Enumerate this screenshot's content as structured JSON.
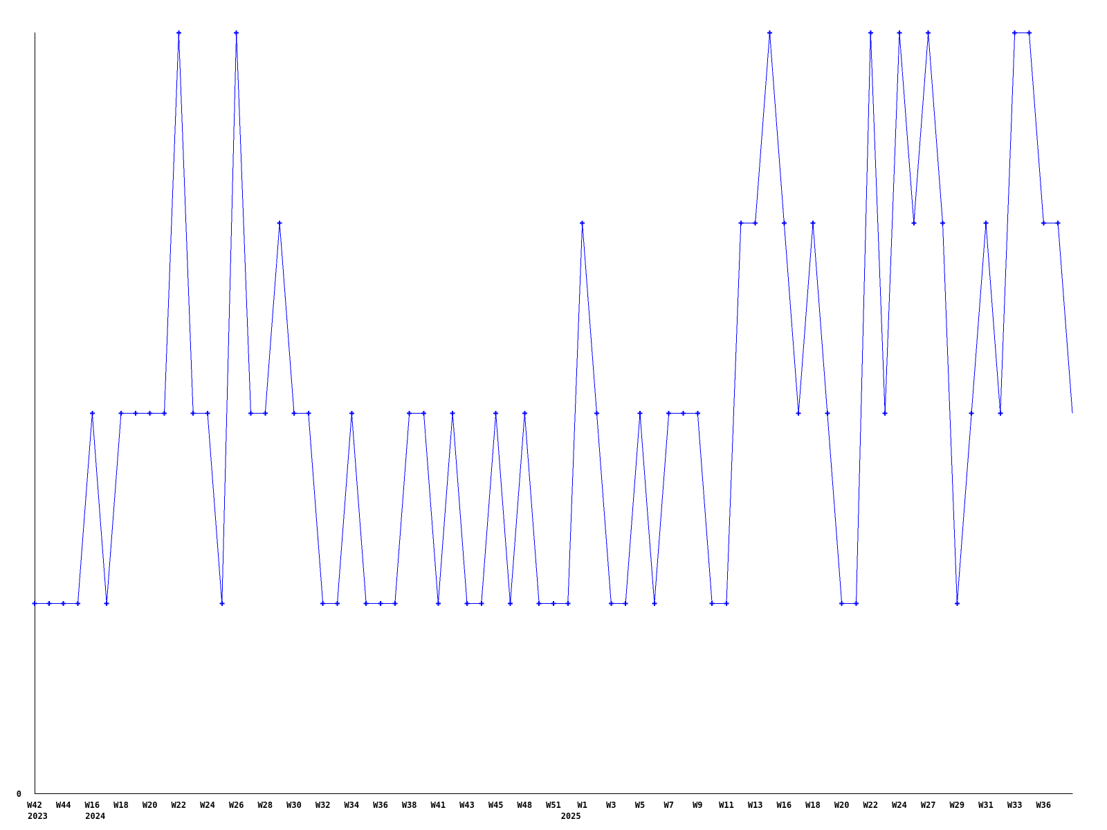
{
  "chart_data": {
    "type": "line",
    "title": "",
    "xlabel": "",
    "ylabel": "",
    "grid": false,
    "legend": null,
    "ylim": [
      0,
      4
    ],
    "y_axis": {
      "zero_label": "0"
    },
    "line_color": "#0000ff",
    "marker": "plus",
    "axis_color": "#000000",
    "background_color": "#ffffff",
    "x_tick_labels": [
      {
        "index": 0,
        "label": "W42",
        "year": "2023"
      },
      {
        "index": 2,
        "label": "W44"
      },
      {
        "index": 4,
        "label": "W16",
        "year": "2024"
      },
      {
        "index": 6,
        "label": "W18"
      },
      {
        "index": 8,
        "label": "W20"
      },
      {
        "index": 10,
        "label": "W22"
      },
      {
        "index": 12,
        "label": "W24"
      },
      {
        "index": 14,
        "label": "W26"
      },
      {
        "index": 16,
        "label": "W28"
      },
      {
        "index": 18,
        "label": "W30"
      },
      {
        "index": 20,
        "label": "W32"
      },
      {
        "index": 22,
        "label": "W34"
      },
      {
        "index": 24,
        "label": "W36"
      },
      {
        "index": 26,
        "label": "W38"
      },
      {
        "index": 28,
        "label": "W41"
      },
      {
        "index": 30,
        "label": "W43"
      },
      {
        "index": 32,
        "label": "W45"
      },
      {
        "index": 34,
        "label": "W48"
      },
      {
        "index": 36,
        "label": "W51"
      },
      {
        "index": 38,
        "label": "W1",
        "year": "2025"
      },
      {
        "index": 40,
        "label": "W3"
      },
      {
        "index": 42,
        "label": "W5"
      },
      {
        "index": 44,
        "label": "W7"
      },
      {
        "index": 46,
        "label": "W9"
      },
      {
        "index": 48,
        "label": "W11"
      },
      {
        "index": 50,
        "label": "W13"
      },
      {
        "index": 52,
        "label": "W16"
      },
      {
        "index": 54,
        "label": "W18"
      },
      {
        "index": 56,
        "label": "W20"
      },
      {
        "index": 58,
        "label": "W22"
      },
      {
        "index": 60,
        "label": "W24"
      },
      {
        "index": 62,
        "label": "W27"
      },
      {
        "index": 64,
        "label": "W29"
      },
      {
        "index": 66,
        "label": "W31"
      },
      {
        "index": 68,
        "label": "W33"
      },
      {
        "index": 70,
        "label": "W36"
      }
    ],
    "values": [
      1,
      1,
      1,
      1,
      2,
      1,
      2,
      2,
      2,
      2,
      4,
      2,
      2,
      1,
      4,
      2,
      2,
      3,
      2,
      2,
      1,
      1,
      2,
      1,
      1,
      1,
      2,
      2,
      1,
      2,
      1,
      1,
      2,
      1,
      2,
      1,
      1,
      1,
      3,
      2,
      1,
      1,
      2,
      1,
      2,
      2,
      2,
      1,
      1,
      3,
      3,
      4,
      3,
      2,
      3,
      2,
      1,
      1,
      4,
      2,
      4,
      3,
      4,
      3,
      1,
      2,
      3,
      2,
      4,
      4,
      3,
      3,
      2
    ]
  }
}
